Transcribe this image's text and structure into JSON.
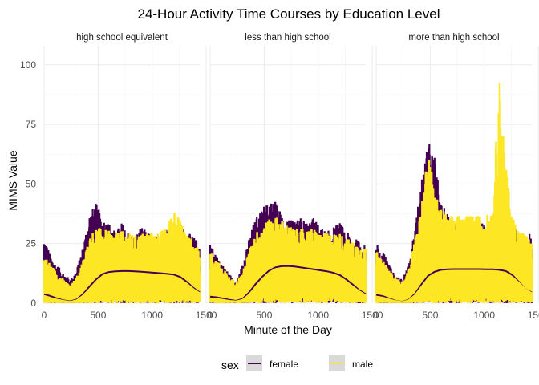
{
  "chart_data": {
    "type": "line",
    "title": "24-Hour Activity Time Courses by Education Level",
    "xlabel": "Minute of the Day",
    "ylabel": "MIMS Value",
    "xlim": [
      0,
      1440
    ],
    "ylim": [
      0,
      108
    ],
    "x_ticks": [
      0,
      500,
      1000,
      1500
    ],
    "x_tick_labels": [
      "0",
      "500",
      "1000",
      "1500"
    ],
    "y_ticks": [
      0,
      25,
      50,
      75,
      100
    ],
    "y_tick_labels": [
      "0",
      "25",
      "50",
      "75",
      "100"
    ],
    "grid": true,
    "legend": {
      "title": "sex",
      "placement": "bottom",
      "entries": [
        {
          "label": "female",
          "color": "#440154"
        },
        {
          "label": "male",
          "color": "#FDE725"
        }
      ]
    },
    "panels": [
      {
        "label": "high school equivalent",
        "series": [
          {
            "name": "female",
            "color": "#440154",
            "envelope_x": [
              0,
              60,
              120,
              180,
              240,
              300,
              360,
              420,
              480,
              540,
              600,
              660,
              720,
              780,
              840,
              900,
              960,
              1020,
              1080,
              1140,
              1200,
              1260,
              1320,
              1380,
              1440
            ],
            "envelope_y": [
              28,
              20,
              16,
              13,
              10,
              14,
              24,
              38,
              42,
              36,
              34,
              30,
              34,
              30,
              28,
              32,
              30,
              28,
              30,
              32,
              30,
              34,
              30,
              28,
              25
            ],
            "smooth_x": [
              0,
              60,
              120,
              180,
              240,
              300,
              360,
              420,
              480,
              540,
              600,
              660,
              720,
              780,
              840,
              900,
              960,
              1020,
              1080,
              1140,
              1200,
              1260,
              1320,
              1380,
              1440
            ],
            "smooth_y": [
              3.8,
              3.0,
              2.0,
              1.2,
              0.8,
              1.5,
              3.8,
              7.0,
              10.0,
              12.2,
              13.1,
              13.4,
              13.5,
              13.5,
              13.4,
              13.2,
              13.0,
              12.8,
              12.6,
              12.3,
              12.0,
              11.0,
              9.0,
              6.5,
              4.5
            ]
          },
          {
            "name": "male",
            "color": "#FDE725",
            "envelope_x": [
              0,
              60,
              120,
              180,
              240,
              300,
              360,
              420,
              480,
              540,
              600,
              660,
              720,
              780,
              840,
              900,
              960,
              1020,
              1080,
              1140,
              1200,
              1260,
              1320,
              1380,
              1440
            ],
            "envelope_y": [
              22,
              18,
              14,
              11,
              8,
              12,
              20,
              30,
              35,
              34,
              33,
              32,
              33,
              32,
              31,
              32,
              33,
              32,
              33,
              35,
              44,
              38,
              32,
              28,
              24
            ],
            "smooth_x": [
              0,
              60,
              120,
              180,
              240,
              300,
              360,
              420,
              480,
              540,
              600,
              660,
              720,
              780,
              840,
              900,
              960,
              1020,
              1080,
              1140,
              1200,
              1260,
              1320,
              1380,
              1440
            ],
            "smooth_y": [
              2.8,
              2.2,
              1.5,
              1.0,
              0.6,
              1.2,
              3.2,
              6.0,
              8.8,
              10.8,
              11.8,
              12.2,
              12.4,
              12.5,
              12.5,
              12.4,
              12.2,
              12.0,
              11.8,
              11.4,
              11.0,
              10.0,
              8.2,
              6.0,
              4.2
            ]
          }
        ]
      },
      {
        "label": "less than high school",
        "series": [
          {
            "name": "female",
            "color": "#440154",
            "envelope_x": [
              0,
              60,
              120,
              180,
              240,
              300,
              360,
              420,
              480,
              540,
              600,
              660,
              720,
              780,
              840,
              900,
              960,
              1020,
              1080,
              1140,
              1200,
              1260,
              1320,
              1380,
              1440
            ],
            "envelope_y": [
              25,
              20,
              16,
              12,
              10,
              16,
              28,
              36,
              40,
              42,
              43,
              38,
              36,
              34,
              36,
              34,
              36,
              32,
              30,
              32,
              34,
              30,
              28,
              26,
              24
            ],
            "smooth_x": [
              0,
              60,
              120,
              180,
              240,
              300,
              360,
              420,
              480,
              540,
              600,
              660,
              720,
              780,
              840,
              900,
              960,
              1020,
              1080,
              1140,
              1200,
              1260,
              1320,
              1380,
              1440
            ],
            "smooth_y": [
              2.8,
              2.5,
              2.0,
              1.4,
              1.0,
              1.8,
              4.5,
              8.0,
              11.0,
              13.5,
              15.0,
              15.5,
              15.6,
              15.4,
              15.0,
              14.6,
              14.2,
              13.8,
              13.4,
              12.8,
              11.8,
              10.0,
              7.8,
              5.5,
              3.8
            ]
          },
          {
            "name": "male",
            "color": "#FDE725",
            "envelope_x": [
              0,
              60,
              120,
              180,
              240,
              300,
              360,
              420,
              480,
              540,
              600,
              660,
              720,
              780,
              840,
              900,
              960,
              1020,
              1080,
              1140,
              1200,
              1260,
              1320,
              1380,
              1440
            ],
            "envelope_y": [
              24,
              20,
              16,
              12,
              10,
              14,
              24,
              32,
              36,
              38,
              40,
              38,
              36,
              34,
              34,
              34,
              34,
              32,
              32,
              32,
              32,
              30,
              28,
              27,
              25
            ],
            "smooth_x": [
              0,
              60,
              120,
              180,
              240,
              300,
              360,
              420,
              480,
              540,
              600,
              660,
              720,
              780,
              840,
              900,
              960,
              1020,
              1080,
              1140,
              1200,
              1260,
              1320,
              1380,
              1440
            ],
            "smooth_y": [
              2.0,
              1.8,
              1.4,
              1.0,
              0.8,
              1.4,
              3.6,
              6.8,
              9.8,
              12.0,
              13.4,
              14.0,
              14.2,
              14.0,
              13.8,
              13.4,
              13.0,
              12.6,
              12.2,
              11.6,
              10.6,
              9.0,
              7.0,
              5.0,
              3.4
            ]
          }
        ]
      },
      {
        "label": "more than high school",
        "series": [
          {
            "name": "female",
            "color": "#440154",
            "envelope_x": [
              0,
              60,
              120,
              180,
              240,
              300,
              360,
              420,
              480,
              540,
              600,
              660,
              720,
              780,
              840,
              900,
              960,
              1020,
              1080,
              1140,
              1200,
              1260,
              1320,
              1380,
              1440
            ],
            "envelope_y": [
              26,
              22,
              16,
              12,
              10,
              16,
              32,
              52,
              68,
              62,
              42,
              38,
              36,
              34,
              35,
              34,
              34,
              33,
              32,
              34,
              40,
              34,
              30,
              28,
              30
            ],
            "smooth_x": [
              0,
              60,
              120,
              180,
              240,
              300,
              360,
              420,
              480,
              540,
              600,
              660,
              720,
              780,
              840,
              900,
              960,
              1020,
              1080,
              1140,
              1200,
              1260,
              1320,
              1380,
              1440
            ],
            "smooth_y": [
              3.5,
              3.0,
              2.0,
              1.0,
              0.6,
              1.4,
              4.0,
              8.0,
              11.5,
              13.2,
              14.0,
              14.2,
              14.3,
              14.3,
              14.3,
              14.3,
              14.3,
              14.2,
              14.2,
              14.0,
              13.5,
              11.8,
              9.0,
              6.0,
              4.5
            ]
          },
          {
            "name": "male",
            "color": "#FDE725",
            "envelope_x": [
              0,
              60,
              120,
              180,
              240,
              300,
              360,
              420,
              480,
              540,
              600,
              660,
              720,
              780,
              840,
              900,
              960,
              1020,
              1080,
              1140,
              1200,
              1260,
              1320,
              1380,
              1440
            ],
            "envelope_y": [
              24,
              20,
              15,
              12,
              10,
              15,
              30,
              44,
              72,
              52,
              44,
              40,
              40,
              40,
              40,
              40,
              40,
              40,
              44,
              104,
              62,
              40,
              34,
              32,
              28
            ],
            "smooth_x": [
              0,
              60,
              120,
              180,
              240,
              300,
              360,
              420,
              480,
              540,
              600,
              660,
              720,
              780,
              840,
              900,
              960,
              1020,
              1080,
              1140,
              1200,
              1260,
              1320,
              1380,
              1440
            ],
            "smooth_y": [
              2.8,
              2.4,
              1.6,
              0.9,
              0.5,
              1.2,
              3.4,
              7.0,
              10.4,
              12.2,
              13.0,
              13.3,
              13.4,
              13.4,
              13.4,
              13.4,
              13.4,
              13.3,
              13.2,
              13.0,
              12.5,
              11.0,
              8.6,
              6.0,
              4.2
            ]
          }
        ]
      }
    ]
  }
}
